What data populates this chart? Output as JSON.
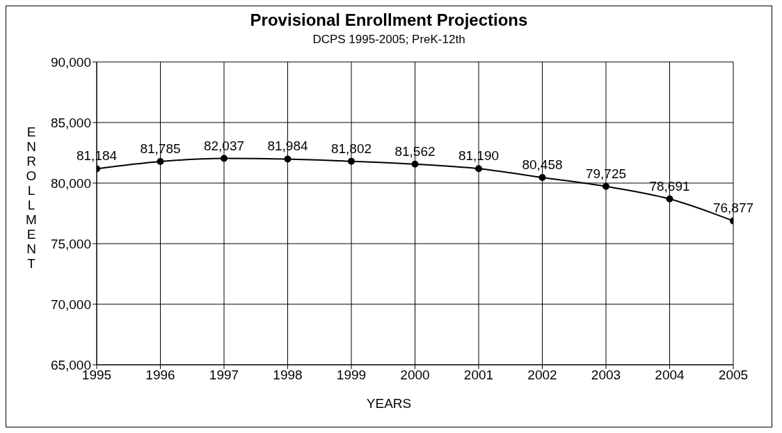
{
  "chart_data": {
    "type": "line",
    "title": "Provisional Enrollment Projections",
    "subtitle": "DCPS 1995-2005; PreK-12th",
    "xlabel": "YEARS",
    "ylabel": "ENROLLMENT",
    "x": [
      1995,
      1996,
      1997,
      1998,
      1999,
      2000,
      2001,
      2002,
      2003,
      2004,
      2005
    ],
    "series": [
      {
        "color": "#000000",
        "values": [
          81184,
          81785,
          82037,
          81984,
          81802,
          81562,
          81190,
          80458,
          79725,
          78691,
          76877
        ],
        "value_labels": [
          "81,184",
          "81,785",
          "82,037",
          "81,984",
          "81,802",
          "81,562",
          "81,190",
          "80,458",
          "79,725",
          "78,691",
          "76,877"
        ]
      }
    ],
    "xlim": [
      1995,
      2005
    ],
    "xticks": [
      1995,
      1996,
      1997,
      1998,
      1999,
      2000,
      2001,
      2002,
      2003,
      2004,
      2005
    ],
    "ylim": [
      65000,
      90000
    ],
    "yticks": [
      {
        "value": 65000,
        "label": "65,000"
      },
      {
        "value": 70000,
        "label": "70,000"
      },
      {
        "value": 75000,
        "label": "75,000"
      },
      {
        "value": 80000,
        "label": "80,000"
      },
      {
        "value": 85000,
        "label": "85,000"
      },
      {
        "value": 90000,
        "label": "90,000"
      }
    ],
    "grid": true,
    "marker": "circle",
    "line_style": "solid"
  }
}
